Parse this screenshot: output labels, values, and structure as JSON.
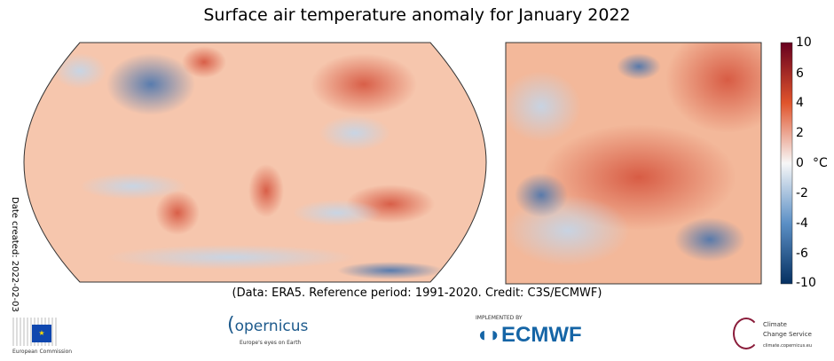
{
  "title": "Surface air temperature anomaly for January 2022",
  "caption": "(Data: ERA5.  Reference period: 1991-2020.  Credit: C3S/ECMWF)",
  "date_created": "Date created: 2022-02-03",
  "colorbar": {
    "unit": "°C",
    "ticks": [
      "10",
      "6",
      "4",
      "2",
      "0",
      "-2",
      "-4",
      "-6",
      "-10"
    ],
    "min": -10,
    "max": 10,
    "colors": {
      "max": "#67001f",
      "warm": "#e0542c",
      "neutral": "#f7f7f7",
      "cool": "#5b8fc5",
      "min": "#053061"
    }
  },
  "maps": {
    "global": "world map (Robinson projection)",
    "europe": "Europe regional map"
  },
  "logos": {
    "eu": {
      "name": "European Commission",
      "text": "European Commission"
    },
    "copernicus": {
      "name": "Copernicus",
      "text": "opernicus",
      "subtext": "Europe's eyes on Earth"
    },
    "ecmwf": {
      "name": "ECMWF",
      "text": "ECMWF",
      "subtext": "IMPLEMENTED BY"
    },
    "c3s": {
      "name": "Climate Change Service",
      "text1": "Climate",
      "text2": "Change Service",
      "subtext": "climate.copernicus.eu"
    }
  }
}
